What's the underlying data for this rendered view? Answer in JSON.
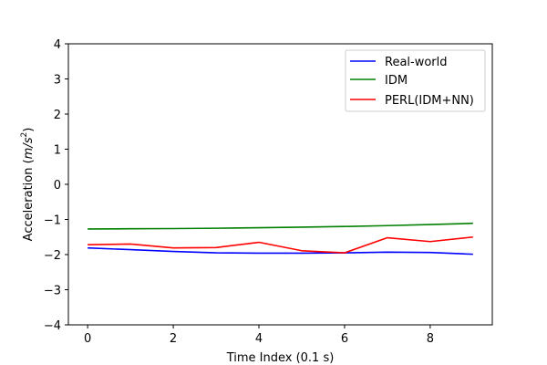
{
  "chart_data": {
    "type": "line",
    "title": "",
    "xlabel": "Time Index (0.1 s)",
    "ylabel_main": "Acceleration (",
    "ylabel_unit_m": "m",
    "ylabel_unit_sep": "/",
    "ylabel_unit_s": "s",
    "ylabel_unit_exp": "2",
    "ylabel_close": ")",
    "xlim": [
      -0.45,
      9.45
    ],
    "ylim": [
      -4,
      4
    ],
    "xticks": [
      0,
      2,
      4,
      6,
      8
    ],
    "yticks": [
      -4,
      -3,
      -2,
      -1,
      0,
      1,
      2,
      3,
      4
    ],
    "x": [
      0,
      1,
      2,
      3,
      4,
      5,
      6,
      7,
      8,
      9
    ],
    "legend_position": "upper right",
    "grid": false,
    "series": [
      {
        "name": "Real-world",
        "color": "#0000ff",
        "values": [
          -1.81,
          -1.86,
          -1.91,
          -1.95,
          -1.96,
          -1.96,
          -1.95,
          -1.93,
          -1.94,
          -1.99
        ]
      },
      {
        "name": "IDM",
        "color": "#008000",
        "values": [
          -1.27,
          -1.265,
          -1.26,
          -1.25,
          -1.235,
          -1.22,
          -1.2,
          -1.175,
          -1.145,
          -1.11
        ]
      },
      {
        "name": "PERL(IDM+NN)",
        "color": "#ff0000",
        "values": [
          -1.72,
          -1.7,
          -1.81,
          -1.8,
          -1.65,
          -1.89,
          -1.95,
          -1.52,
          -1.63,
          -1.5
        ]
      }
    ]
  }
}
